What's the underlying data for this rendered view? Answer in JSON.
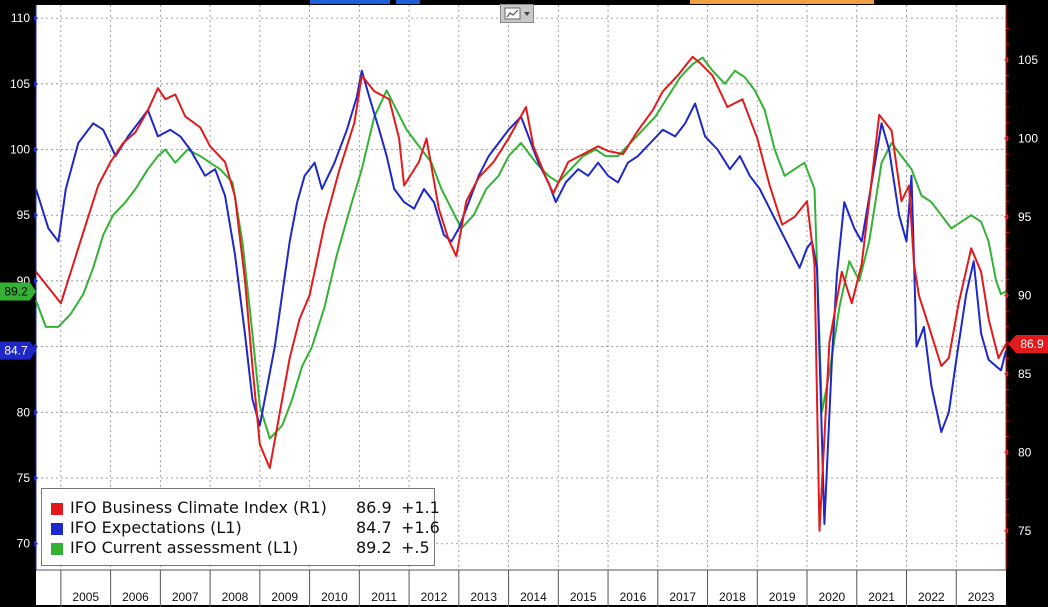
{
  "chart_data": {
    "type": "line",
    "x_axis": {
      "ticks": [
        "2005",
        "2006",
        "2007",
        "2008",
        "2009",
        "2010",
        "2011",
        "2012",
        "2013",
        "2014",
        "2015",
        "2016",
        "2017",
        "2018",
        "2019",
        "2020",
        "2021",
        "2022",
        "2023"
      ],
      "range": [
        2004.5,
        2024.0
      ]
    },
    "left_axis": {
      "ticks": [
        "70",
        "75",
        "80",
        "85",
        "90",
        "95",
        "100",
        "105",
        "110"
      ],
      "range": [
        68,
        111
      ]
    },
    "right_axis": {
      "ticks": [
        "75",
        "80",
        "85",
        "90",
        "95",
        "100",
        "105"
      ],
      "range": [
        72.5,
        108.5
      ]
    },
    "grid": true,
    "legend_position": "bottom-left",
    "series": [
      {
        "name": "IFO Business Climate Index (R1)",
        "axis": "right",
        "color": "#e31a1c",
        "last": "86.9",
        "change": "+1.1",
        "points": [
          [
            2004.5,
            91.5
          ],
          [
            2004.75,
            90.5
          ],
          [
            2005.0,
            89.5
          ],
          [
            2005.25,
            92.0
          ],
          [
            2005.5,
            94.5
          ],
          [
            2005.75,
            97.0
          ],
          [
            2006.0,
            98.5
          ],
          [
            2006.25,
            99.7
          ],
          [
            2006.5,
            100.4
          ],
          [
            2006.75,
            101.8
          ],
          [
            2006.95,
            103.2
          ],
          [
            2007.1,
            102.5
          ],
          [
            2007.3,
            102.8
          ],
          [
            2007.5,
            101.4
          ],
          [
            2007.8,
            100.7
          ],
          [
            2008.0,
            99.5
          ],
          [
            2008.3,
            98.5
          ],
          [
            2008.5,
            96.3
          ],
          [
            2008.7,
            91.0
          ],
          [
            2008.85,
            85.5
          ],
          [
            2009.0,
            80.5
          ],
          [
            2009.2,
            79.0
          ],
          [
            2009.4,
            82.5
          ],
          [
            2009.6,
            86.0
          ],
          [
            2009.8,
            88.5
          ],
          [
            2010.0,
            90.0
          ],
          [
            2010.3,
            94.5
          ],
          [
            2010.6,
            98.0
          ],
          [
            2010.9,
            101.0
          ],
          [
            2011.05,
            104.0
          ],
          [
            2011.3,
            103.0
          ],
          [
            2011.6,
            102.5
          ],
          [
            2011.8,
            100.0
          ],
          [
            2011.9,
            97.0
          ],
          [
            2012.2,
            98.5
          ],
          [
            2012.35,
            100.0
          ],
          [
            2012.6,
            95.5
          ],
          [
            2012.8,
            93.5
          ],
          [
            2012.95,
            92.5
          ],
          [
            2013.15,
            96.0
          ],
          [
            2013.4,
            97.5
          ],
          [
            2013.7,
            98.5
          ],
          [
            2014.0,
            100.0
          ],
          [
            2014.35,
            102.0
          ],
          [
            2014.5,
            99.5
          ],
          [
            2014.75,
            97.5
          ],
          [
            2014.9,
            96.5
          ],
          [
            2015.2,
            98.5
          ],
          [
            2015.5,
            99.0
          ],
          [
            2015.8,
            99.5
          ],
          [
            2016.0,
            99.2
          ],
          [
            2016.3,
            99.0
          ],
          [
            2016.6,
            100.5
          ],
          [
            2016.9,
            101.8
          ],
          [
            2017.1,
            103.0
          ],
          [
            2017.4,
            104.0
          ],
          [
            2017.7,
            105.2
          ],
          [
            2017.85,
            104.8
          ],
          [
            2018.1,
            104.0
          ],
          [
            2018.4,
            102.0
          ],
          [
            2018.7,
            102.5
          ],
          [
            2019.0,
            100.0
          ],
          [
            2019.25,
            97.0
          ],
          [
            2019.5,
            94.5
          ],
          [
            2019.75,
            95.0
          ],
          [
            2020.0,
            96.0
          ],
          [
            2020.15,
            92.0
          ],
          [
            2020.25,
            75.0
          ],
          [
            2020.45,
            87.0
          ],
          [
            2020.7,
            91.5
          ],
          [
            2020.9,
            89.5
          ],
          [
            2021.1,
            92.0
          ],
          [
            2021.25,
            96.0
          ],
          [
            2021.45,
            101.5
          ],
          [
            2021.7,
            100.5
          ],
          [
            2021.9,
            96.0
          ],
          [
            2022.05,
            97.0
          ],
          [
            2022.15,
            92.0
          ],
          [
            2022.25,
            90.0
          ],
          [
            2022.45,
            88.0
          ],
          [
            2022.7,
            85.5
          ],
          [
            2022.85,
            86.0
          ],
          [
            2023.05,
            89.5
          ],
          [
            2023.3,
            93.0
          ],
          [
            2023.5,
            91.5
          ],
          [
            2023.65,
            88.5
          ],
          [
            2023.85,
            86.0
          ],
          [
            2024.0,
            86.9
          ]
        ]
      },
      {
        "name": "IFO Expectations (L1)",
        "axis": "left",
        "color": "#1e28c8",
        "last": "84.7",
        "change": "+1.6",
        "points": [
          [
            2004.5,
            97.0
          ],
          [
            2004.75,
            94.0
          ],
          [
            2004.95,
            93.0
          ],
          [
            2005.1,
            97.0
          ],
          [
            2005.35,
            100.5
          ],
          [
            2005.65,
            102.0
          ],
          [
            2005.85,
            101.5
          ],
          [
            2006.1,
            99.5
          ],
          [
            2006.35,
            101.0
          ],
          [
            2006.55,
            102.0
          ],
          [
            2006.75,
            103.0
          ],
          [
            2006.95,
            101.0
          ],
          [
            2007.2,
            101.5
          ],
          [
            2007.4,
            101.0
          ],
          [
            2007.6,
            100.0
          ],
          [
            2007.9,
            98.0
          ],
          [
            2008.1,
            98.5
          ],
          [
            2008.3,
            96.5
          ],
          [
            2008.5,
            92.0
          ],
          [
            2008.7,
            86.0
          ],
          [
            2008.85,
            81.0
          ],
          [
            2009.0,
            79.0
          ],
          [
            2009.15,
            82.0
          ],
          [
            2009.3,
            85.0
          ],
          [
            2009.45,
            89.0
          ],
          [
            2009.6,
            93.0
          ],
          [
            2009.75,
            96.0
          ],
          [
            2009.9,
            98.0
          ],
          [
            2010.1,
            99.0
          ],
          [
            2010.25,
            97.0
          ],
          [
            2010.5,
            99.0
          ],
          [
            2010.75,
            101.5
          ],
          [
            2010.95,
            104.0
          ],
          [
            2011.05,
            106.0
          ],
          [
            2011.2,
            104.0
          ],
          [
            2011.4,
            101.5
          ],
          [
            2011.55,
            99.5
          ],
          [
            2011.7,
            97.0
          ],
          [
            2011.9,
            96.0
          ],
          [
            2012.1,
            95.5
          ],
          [
            2012.3,
            97.0
          ],
          [
            2012.5,
            96.0
          ],
          [
            2012.7,
            93.5
          ],
          [
            2012.85,
            93.0
          ],
          [
            2013.0,
            94.0
          ],
          [
            2013.2,
            96.0
          ],
          [
            2013.4,
            98.0
          ],
          [
            2013.6,
            99.5
          ],
          [
            2013.8,
            100.5
          ],
          [
            2014.0,
            101.5
          ],
          [
            2014.25,
            102.5
          ],
          [
            2014.4,
            101.0
          ],
          [
            2014.6,
            99.0
          ],
          [
            2014.8,
            97.5
          ],
          [
            2014.95,
            96.0
          ],
          [
            2015.15,
            97.5
          ],
          [
            2015.4,
            98.5
          ],
          [
            2015.6,
            98.0
          ],
          [
            2015.8,
            99.0
          ],
          [
            2016.0,
            98.0
          ],
          [
            2016.2,
            97.5
          ],
          [
            2016.4,
            99.0
          ],
          [
            2016.6,
            99.5
          ],
          [
            2016.85,
            100.5
          ],
          [
            2017.1,
            101.5
          ],
          [
            2017.35,
            101.0
          ],
          [
            2017.55,
            102.0
          ],
          [
            2017.75,
            103.5
          ],
          [
            2017.95,
            101.0
          ],
          [
            2018.2,
            100.0
          ],
          [
            2018.45,
            98.5
          ],
          [
            2018.65,
            99.5
          ],
          [
            2018.85,
            98.0
          ],
          [
            2019.05,
            97.0
          ],
          [
            2019.25,
            95.5
          ],
          [
            2019.45,
            94.0
          ],
          [
            2019.65,
            92.5
          ],
          [
            2019.85,
            91.0
          ],
          [
            2020.0,
            92.5
          ],
          [
            2020.1,
            93.0
          ],
          [
            2020.2,
            91.0
          ],
          [
            2020.35,
            71.5
          ],
          [
            2020.5,
            84.0
          ],
          [
            2020.6,
            90.5
          ],
          [
            2020.75,
            96.0
          ],
          [
            2020.95,
            94.0
          ],
          [
            2021.1,
            93.0
          ],
          [
            2021.3,
            97.5
          ],
          [
            2021.5,
            102.0
          ],
          [
            2021.65,
            100.0
          ],
          [
            2021.85,
            95.0
          ],
          [
            2022.0,
            93.0
          ],
          [
            2022.1,
            98.0
          ],
          [
            2022.2,
            85.0
          ],
          [
            2022.35,
            86.5
          ],
          [
            2022.5,
            82.0
          ],
          [
            2022.7,
            78.5
          ],
          [
            2022.85,
            80.0
          ],
          [
            2023.0,
            84.0
          ],
          [
            2023.2,
            89.0
          ],
          [
            2023.35,
            91.5
          ],
          [
            2023.5,
            86.0
          ],
          [
            2023.65,
            84.0
          ],
          [
            2023.8,
            83.5
          ],
          [
            2023.9,
            83.2
          ],
          [
            2024.0,
            84.7
          ]
        ]
      },
      {
        "name": "IFO Current assessment (L1)",
        "axis": "left",
        "color": "#33b233",
        "last": "89.2",
        "change": "+.5",
        "points": [
          [
            2004.5,
            88.5
          ],
          [
            2004.7,
            86.5
          ],
          [
            2004.95,
            86.5
          ],
          [
            2005.2,
            87.5
          ],
          [
            2005.45,
            89.0
          ],
          [
            2005.65,
            91.0
          ],
          [
            2005.85,
            93.5
          ],
          [
            2006.05,
            95.0
          ],
          [
            2006.3,
            96.0
          ],
          [
            2006.5,
            97.0
          ],
          [
            2006.75,
            98.5
          ],
          [
            2006.95,
            99.5
          ],
          [
            2007.1,
            100.0
          ],
          [
            2007.3,
            99.0
          ],
          [
            2007.55,
            100.0
          ],
          [
            2007.8,
            99.5
          ],
          [
            2008.0,
            99.0
          ],
          [
            2008.2,
            98.5
          ],
          [
            2008.45,
            97.5
          ],
          [
            2008.65,
            93.0
          ],
          [
            2008.85,
            86.0
          ],
          [
            2009.0,
            80.5
          ],
          [
            2009.2,
            78.0
          ],
          [
            2009.45,
            79.0
          ],
          [
            2009.65,
            81.0
          ],
          [
            2009.85,
            83.5
          ],
          [
            2010.05,
            85.0
          ],
          [
            2010.3,
            88.0
          ],
          [
            2010.55,
            92.0
          ],
          [
            2010.85,
            96.0
          ],
          [
            2011.05,
            98.5
          ],
          [
            2011.3,
            102.5
          ],
          [
            2011.55,
            104.5
          ],
          [
            2011.75,
            103.0
          ],
          [
            2011.95,
            101.5
          ],
          [
            2012.15,
            100.5
          ],
          [
            2012.45,
            99.0
          ],
          [
            2012.65,
            97.0
          ],
          [
            2012.85,
            95.5
          ],
          [
            2013.05,
            94.0
          ],
          [
            2013.3,
            95.0
          ],
          [
            2013.55,
            97.0
          ],
          [
            2013.8,
            98.0
          ],
          [
            2014.0,
            99.5
          ],
          [
            2014.25,
            100.5
          ],
          [
            2014.55,
            99.0
          ],
          [
            2014.8,
            98.0
          ],
          [
            2015.0,
            97.5
          ],
          [
            2015.25,
            98.5
          ],
          [
            2015.5,
            99.5
          ],
          [
            2015.75,
            100.0
          ],
          [
            2015.95,
            99.5
          ],
          [
            2016.2,
            99.5
          ],
          [
            2016.45,
            100.5
          ],
          [
            2016.7,
            101.5
          ],
          [
            2016.95,
            102.5
          ],
          [
            2017.2,
            104.0
          ],
          [
            2017.45,
            105.5
          ],
          [
            2017.7,
            106.5
          ],
          [
            2017.9,
            107.0
          ],
          [
            2018.1,
            106.0
          ],
          [
            2018.35,
            105.0
          ],
          [
            2018.55,
            106.0
          ],
          [
            2018.75,
            105.5
          ],
          [
            2018.95,
            104.5
          ],
          [
            2019.15,
            103.0
          ],
          [
            2019.35,
            100.0
          ],
          [
            2019.55,
            98.0
          ],
          [
            2019.75,
            98.5
          ],
          [
            2019.95,
            99.0
          ],
          [
            2020.15,
            97.0
          ],
          [
            2020.3,
            80.0
          ],
          [
            2020.45,
            83.0
          ],
          [
            2020.65,
            88.0
          ],
          [
            2020.85,
            91.5
          ],
          [
            2021.05,
            90.0
          ],
          [
            2021.25,
            93.0
          ],
          [
            2021.5,
            99.0
          ],
          [
            2021.7,
            100.5
          ],
          [
            2021.9,
            99.5
          ],
          [
            2022.1,
            98.5
          ],
          [
            2022.3,
            96.5
          ],
          [
            2022.5,
            96.0
          ],
          [
            2022.7,
            95.0
          ],
          [
            2022.9,
            94.0
          ],
          [
            2023.1,
            94.5
          ],
          [
            2023.3,
            95.0
          ],
          [
            2023.5,
            94.5
          ],
          [
            2023.65,
            93.0
          ],
          [
            2023.8,
            90.0
          ],
          [
            2023.9,
            89.0
          ],
          [
            2024.0,
            89.2
          ]
        ]
      }
    ]
  }
}
